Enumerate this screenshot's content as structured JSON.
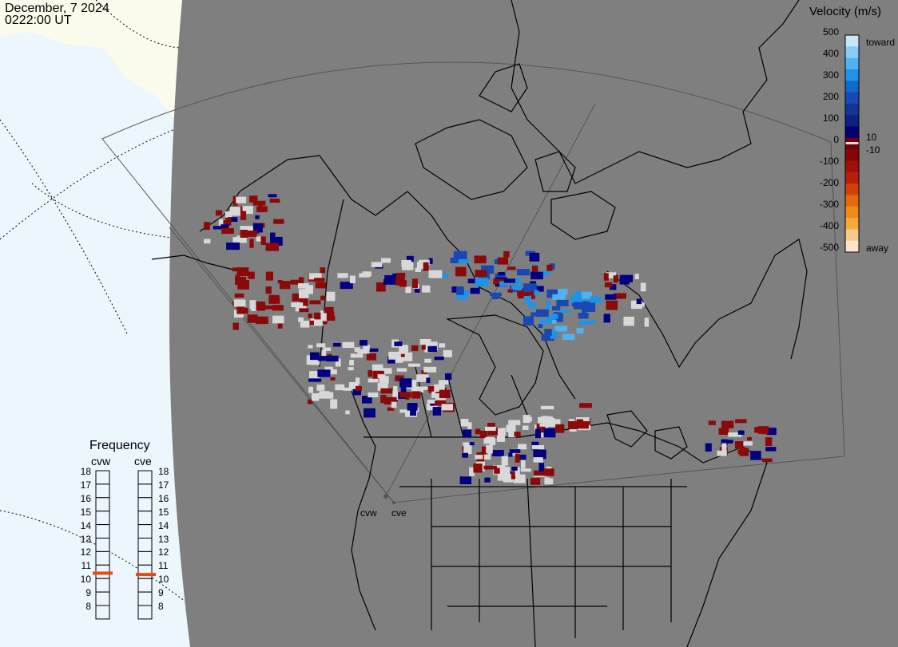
{
  "header": {
    "date": "December, 7 2024",
    "time": "0222:00 UT"
  },
  "legend": {
    "title": "Velocity (m/s)",
    "ticks": [
      "500",
      "400",
      "300",
      "200",
      "100",
      "0",
      "-100",
      "-200",
      "-300",
      "-400",
      "-500"
    ],
    "inner_labels": [
      "10",
      "-10"
    ],
    "end_labels": {
      "top": "toward",
      "bottom": "away"
    },
    "colors": [
      "#c8e6fa",
      "#88ccf6",
      "#4fb2f2",
      "#1d93ea",
      "#0f6ad0",
      "#1848b4",
      "#143590",
      "#0c1f82",
      "#000070",
      "#70000a",
      "#860508",
      "#9e100a",
      "#b81e08",
      "#d2400a",
      "#e26a0a",
      "#f08a12",
      "#f6aa3c",
      "#f8c88e",
      "#fce4c8"
    ]
  },
  "frequency": {
    "title": "Frequency",
    "radars": [
      {
        "name": "cvw",
        "value": 10.9
      },
      {
        "name": "cve",
        "value": 10.8
      }
    ],
    "scale": [
      "18",
      "17",
      "16",
      "15",
      "14",
      "13",
      "12",
      "11",
      "10",
      "9",
      "8"
    ]
  },
  "radar_sites": [
    "cvw",
    "cve"
  ]
}
